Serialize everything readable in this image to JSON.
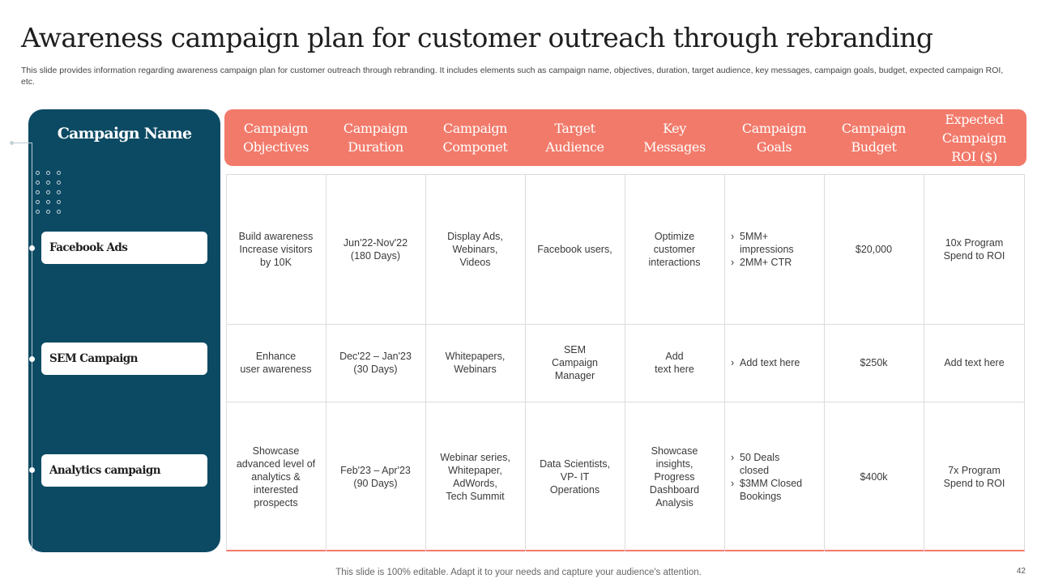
{
  "slide": {
    "title": "Awareness campaign plan for customer outreach through rebranding",
    "subtitle": "This slide provides information regarding awareness campaign plan for customer outreach through rebranding. It includes elements such as campaign name, objectives, duration, target audience, key messages, campaign goals, budget, expected campaign ROI, etc.",
    "footer": "This slide is 100% editable. Adapt it to your needs and capture your audience's attention.",
    "page_number": "42"
  },
  "left_panel": {
    "title": "Campaign Name",
    "campaigns": [
      "Facebook Ads",
      "SEM Campaign",
      "Analytics campaign"
    ]
  },
  "table": {
    "headers": [
      "Campaign\nObjectives",
      "Campaign\nDuration",
      "Campaign\nComponet",
      "Target\nAudience",
      "Key\nMessages",
      "Campaign\nGoals",
      "Campaign\nBudget",
      "Expected\nCampaign\nROI ($)"
    ],
    "rows": [
      {
        "objectives": "Build awareness\nIncrease visitors\nby 10K",
        "duration": "Jun'22-Nov'22\n(180 Days)",
        "component": "Display Ads,\nWebinars,\nVideos",
        "audience": "Facebook users,",
        "messages": "Optimize\ncustomer\ninteractions",
        "goals": [
          "5MM+\nimpressions",
          "2MM+  CTR"
        ],
        "budget": "$20,000",
        "roi": "10x Program\nSpend to ROI"
      },
      {
        "objectives": "Enhance\nuser awareness",
        "duration": "Dec'22 – Jan'23\n(30 Days)",
        "component": "Whitepapers,\nWebinars",
        "audience": "SEM\nCampaign\nManager",
        "messages": "Add\ntext here",
        "goals": [
          "Add text here"
        ],
        "budget": "$250k",
        "roi": "Add text here"
      },
      {
        "objectives": "Showcase\nadvanced  level of\nanalytics &\ninterested\nprospects",
        "duration": "Feb'23 – Apr'23\n(90 Days)",
        "component": "Webinar series,\nWhitepaper,\nAdWords,\nTech Summit",
        "audience": "Data Scientists,\nVP- IT\nOperations",
        "messages": "Showcase\ninsights,\nProgress\nDashboard\nAnalysis",
        "goals": [
          "50 Deals\nclosed",
          "$3MM Closed\nBookings"
        ],
        "budget": "$400k",
        "roi": "7x Program\nSpend to ROI"
      }
    ]
  },
  "colors": {
    "panel": "#0c4a63",
    "header": "#f27a6a",
    "grid": "#dcdcdc"
  }
}
